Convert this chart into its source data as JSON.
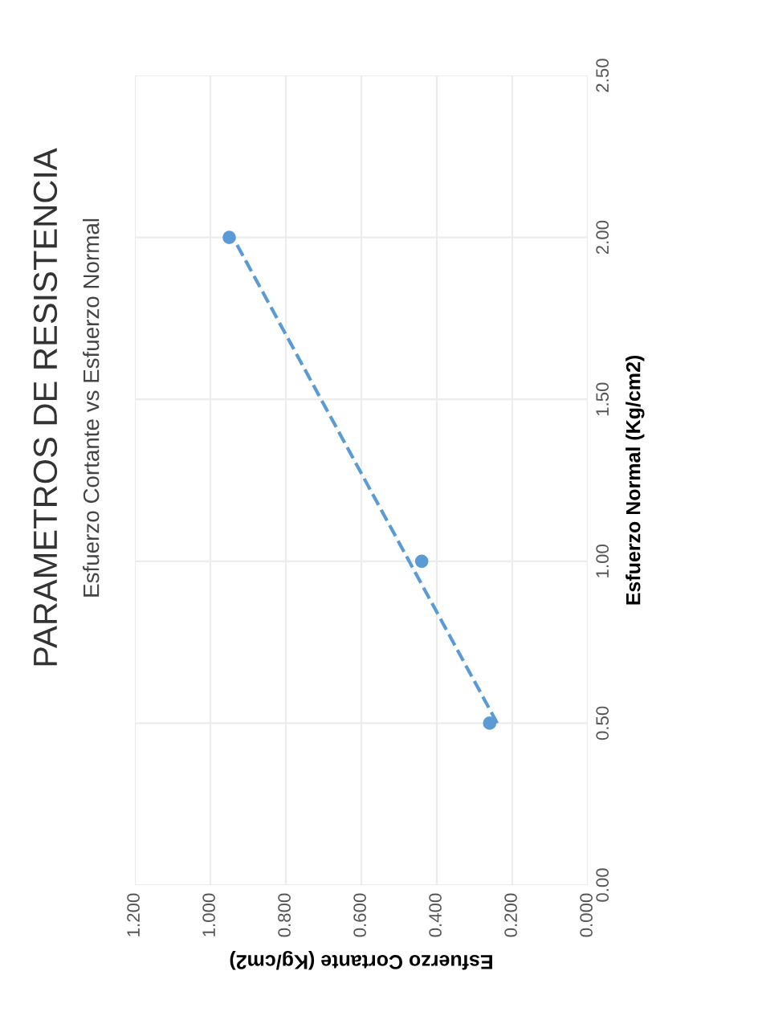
{
  "chart_data": {
    "type": "scatter",
    "title": "PARAMETROS DE RESISTENCIA",
    "subtitle": "Esfuerzo Cortante vs Esfuerzo Normal",
    "xlabel": "Esfuerzo Cortante (Kg/cm2)",
    "ylabel": "Esfuerzo Normal (Kg/cm2)",
    "xlim": [
      1.2,
      0
    ],
    "xticks": [
      {
        "value": 0,
        "label": "0.000"
      },
      {
        "value": 0.2,
        "label": "0.200"
      },
      {
        "value": 0.4,
        "label": "0.400"
      },
      {
        "value": 0.6,
        "label": "0.600"
      },
      {
        "value": 0.8,
        "label": "0.800"
      },
      {
        "value": 1,
        "label": "1.000"
      },
      {
        "value": 1.2,
        "label": "1.200"
      }
    ],
    "ylim": [
      0,
      2.5
    ],
    "yticks": [
      {
        "value": 0,
        "label": "0.00"
      },
      {
        "value": 0.5,
        "label": "0.50"
      },
      {
        "value": 1,
        "label": "1.00"
      },
      {
        "value": 1.5,
        "label": "1.50"
      },
      {
        "value": 2,
        "label": "2.00"
      },
      {
        "value": 2.5,
        "label": "2.50"
      }
    ],
    "grid": true,
    "marker": "circle",
    "series": [
      {
        "color": "#5b9bd5",
        "x": [
          0.26,
          0.44,
          0.95
        ],
        "values": [
          0.5,
          1.0,
          2.0
        ]
      },
      {
        "type": "line",
        "line_style": "dashed",
        "marker": "none",
        "color": "#5b9bd5",
        "x": [
          0.24,
          0.94
        ],
        "values": [
          0.5,
          2.0
        ]
      }
    ]
  }
}
